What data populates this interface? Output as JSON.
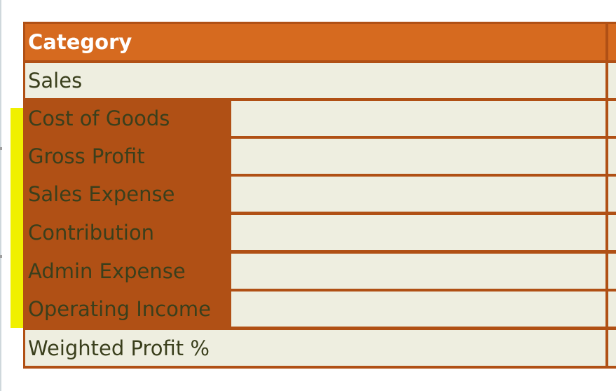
{
  "table": {
    "header": "Category",
    "rows": [
      {
        "label": "Sales",
        "highlighted": false
      },
      {
        "label": "Cost of Goods",
        "highlighted": true
      },
      {
        "label": "Gross Profit",
        "highlighted": true
      },
      {
        "label": "Sales Expense",
        "highlighted": true
      },
      {
        "label": "Contribution",
        "highlighted": true
      },
      {
        "label": "Admin Expense",
        "highlighted": true
      },
      {
        "label": "Operating Income",
        "highlighted": true
      },
      {
        "label": "Weighted Profit %",
        "highlighted": false
      }
    ]
  },
  "colors": {
    "header_bg": "#d66a1f",
    "border": "#b05015",
    "row_bg": "#eeeee0",
    "highlight": "#f0f000",
    "text": "#3a3f1c"
  }
}
